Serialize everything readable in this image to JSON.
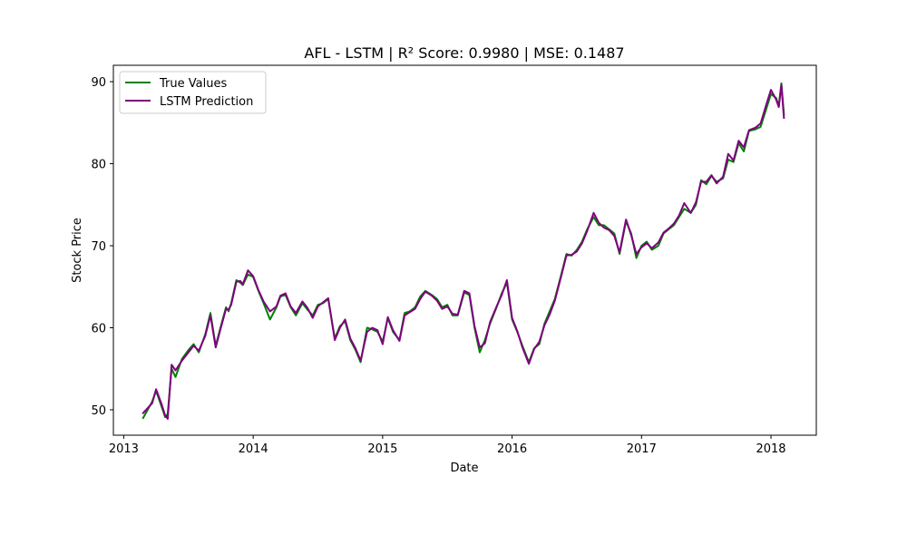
{
  "chart_data": {
    "type": "line",
    "title": "AFL - LSTM | R² Score: 0.9980 | MSE: 0.1487",
    "xlabel": "Date",
    "ylabel": "Stock Price",
    "xlim": [
      2012.92,
      2018.35
    ],
    "ylim": [
      46.9,
      92.0
    ],
    "x_ticks": [
      2013,
      2014,
      2015,
      2016,
      2017,
      2018
    ],
    "x_tick_labels": [
      "2013",
      "2014",
      "2015",
      "2016",
      "2017",
      "2018"
    ],
    "y_ticks": [
      50,
      60,
      70,
      80,
      90
    ],
    "y_tick_labels": [
      "50",
      "60",
      "70",
      "80",
      "90"
    ],
    "grid": false,
    "legend": {
      "placement": "top-left",
      "entries": [
        "True Values",
        "LSTM Prediction"
      ]
    },
    "series": [
      {
        "name": "True Values",
        "color": "#008000",
        "x": [
          2013.15,
          2013.22,
          2013.25,
          2013.29,
          2013.32,
          2013.34,
          2013.37,
          2013.4,
          2013.45,
          2013.5,
          2013.54,
          2013.58,
          2013.63,
          2013.67,
          2013.71,
          2013.75,
          2013.79,
          2013.81,
          2013.83,
          2013.87,
          2013.9,
          2013.92,
          2013.96,
          2014.0,
          2014.04,
          2014.08,
          2014.13,
          2014.18,
          2014.21,
          2014.25,
          2014.29,
          2014.33,
          2014.38,
          2014.42,
          2014.46,
          2014.5,
          2014.54,
          2014.58,
          2014.63,
          2014.67,
          2014.71,
          2014.75,
          2014.79,
          2014.83,
          2014.88,
          2014.92,
          2014.96,
          2015.0,
          2015.04,
          2015.08,
          2015.13,
          2015.17,
          2015.21,
          2015.25,
          2015.29,
          2015.33,
          2015.38,
          2015.42,
          2015.46,
          2015.5,
          2015.54,
          2015.58,
          2015.63,
          2015.67,
          2015.71,
          2015.75,
          2015.79,
          2015.83,
          2015.88,
          2015.92,
          2015.96,
          2016.0,
          2016.04,
          2016.08,
          2016.13,
          2016.17,
          2016.21,
          2016.25,
          2016.29,
          2016.33,
          2016.38,
          2016.42,
          2016.46,
          2016.5,
          2016.54,
          2016.58,
          2016.63,
          2016.67,
          2016.71,
          2016.75,
          2016.79,
          2016.83,
          2016.88,
          2016.92,
          2016.96,
          2017.0,
          2017.04,
          2017.08,
          2017.13,
          2017.17,
          2017.21,
          2017.25,
          2017.29,
          2017.33,
          2017.38,
          2017.42,
          2017.46,
          2017.5,
          2017.54,
          2017.58,
          2017.63,
          2017.67,
          2017.71,
          2017.75,
          2017.79,
          2017.83,
          2017.88,
          2017.92,
          2017.96,
          2018.0,
          2018.04,
          2018.06,
          2018.08,
          2018.1
        ],
        "y": [
          49.0,
          51.0,
          52.3,
          50.5,
          49.1,
          49.5,
          55.0,
          54.0,
          56.2,
          57.3,
          58.0,
          57.0,
          59.2,
          61.8,
          57.8,
          60.2,
          62.5,
          62.0,
          63.0,
          65.8,
          65.5,
          65.2,
          66.5,
          66.2,
          64.5,
          63.0,
          61.0,
          62.5,
          63.8,
          64.0,
          62.5,
          61.5,
          63.0,
          62.2,
          61.5,
          62.8,
          63.0,
          63.5,
          58.7,
          60.2,
          60.8,
          58.5,
          57.3,
          55.8,
          60.0,
          59.8,
          59.5,
          58.3,
          61.2,
          59.5,
          58.5,
          61.8,
          62.0,
          62.5,
          63.8,
          64.5,
          64.0,
          63.5,
          62.5,
          62.8,
          61.5,
          61.5,
          64.3,
          64.0,
          60.0,
          57.0,
          58.5,
          60.5,
          62.5,
          64.2,
          65.5,
          61.0,
          59.5,
          57.8,
          55.8,
          57.5,
          58.0,
          60.5,
          62.0,
          63.5,
          66.5,
          69.0,
          68.8,
          69.5,
          70.5,
          72.0,
          73.5,
          72.5,
          72.5,
          72.0,
          71.5,
          69.0,
          73.0,
          71.5,
          68.5,
          70.0,
          70.5,
          69.5,
          70.0,
          71.5,
          72.0,
          72.5,
          73.5,
          74.5,
          74.0,
          75.0,
          78.0,
          77.5,
          78.5,
          77.8,
          78.2,
          80.5,
          80.2,
          82.5,
          81.5,
          84.0,
          84.2,
          84.5,
          86.5,
          88.5,
          88.0,
          87.0,
          89.8,
          86.0
        ]
      },
      {
        "name": "LSTM Prediction",
        "color": "#800080",
        "x": [
          2013.15,
          2013.22,
          2013.25,
          2013.29,
          2013.32,
          2013.34,
          2013.37,
          2013.4,
          2013.45,
          2013.5,
          2013.54,
          2013.58,
          2013.63,
          2013.67,
          2013.71,
          2013.75,
          2013.79,
          2013.81,
          2013.83,
          2013.87,
          2013.9,
          2013.92,
          2013.96,
          2014.0,
          2014.04,
          2014.08,
          2014.13,
          2014.18,
          2014.21,
          2014.25,
          2014.29,
          2014.33,
          2014.38,
          2014.42,
          2014.46,
          2014.5,
          2014.54,
          2014.58,
          2014.63,
          2014.67,
          2014.71,
          2014.75,
          2014.79,
          2014.83,
          2014.88,
          2014.92,
          2014.96,
          2015.0,
          2015.04,
          2015.08,
          2015.13,
          2015.17,
          2015.21,
          2015.25,
          2015.29,
          2015.33,
          2015.38,
          2015.42,
          2015.46,
          2015.5,
          2015.54,
          2015.58,
          2015.63,
          2015.67,
          2015.71,
          2015.75,
          2015.79,
          2015.83,
          2015.88,
          2015.92,
          2015.96,
          2016.0,
          2016.04,
          2016.08,
          2016.13,
          2016.17,
          2016.21,
          2016.25,
          2016.29,
          2016.33,
          2016.38,
          2016.42,
          2016.46,
          2016.5,
          2016.54,
          2016.58,
          2016.63,
          2016.67,
          2016.71,
          2016.75,
          2016.79,
          2016.83,
          2016.88,
          2016.92,
          2016.96,
          2017.0,
          2017.04,
          2017.08,
          2017.13,
          2017.17,
          2017.21,
          2017.25,
          2017.29,
          2017.33,
          2017.38,
          2017.42,
          2017.46,
          2017.5,
          2017.54,
          2017.58,
          2017.63,
          2017.67,
          2017.71,
          2017.75,
          2017.79,
          2017.83,
          2017.88,
          2017.92,
          2017.96,
          2018.0,
          2018.04,
          2018.06,
          2018.08,
          2018.1
        ],
        "y": [
          49.6,
          50.8,
          52.5,
          50.8,
          49.3,
          48.9,
          55.5,
          54.8,
          56.0,
          57.0,
          57.8,
          57.2,
          59.0,
          61.5,
          57.6,
          60.0,
          62.3,
          62.2,
          62.8,
          65.6,
          65.7,
          65.3,
          67.0,
          66.3,
          64.6,
          63.2,
          62.0,
          62.6,
          63.9,
          64.2,
          62.6,
          61.8,
          63.2,
          62.4,
          61.2,
          62.6,
          63.1,
          63.6,
          58.5,
          60.0,
          61.0,
          58.7,
          57.5,
          56.0,
          59.5,
          60.0,
          59.7,
          58.0,
          61.3,
          59.7,
          58.4,
          61.5,
          61.9,
          62.3,
          63.5,
          64.4,
          63.9,
          63.3,
          62.3,
          62.6,
          61.7,
          61.6,
          64.5,
          64.2,
          60.2,
          57.6,
          58.1,
          60.7,
          62.6,
          64.0,
          65.8,
          61.2,
          59.6,
          57.6,
          55.6,
          57.4,
          58.3,
          60.3,
          61.6,
          63.3,
          66.3,
          68.8,
          68.9,
          69.3,
          70.3,
          71.8,
          74.0,
          72.8,
          72.2,
          71.9,
          71.2,
          69.2,
          73.2,
          71.3,
          69.0,
          69.8,
          70.3,
          69.7,
          70.4,
          71.6,
          72.1,
          72.7,
          73.7,
          75.2,
          74.0,
          75.3,
          77.8,
          77.8,
          78.6,
          77.6,
          78.4,
          81.2,
          80.4,
          82.8,
          82.0,
          84.1,
          84.4,
          84.9,
          87.0,
          89.0,
          87.8,
          86.9,
          89.6,
          85.6
        ]
      }
    ]
  }
}
